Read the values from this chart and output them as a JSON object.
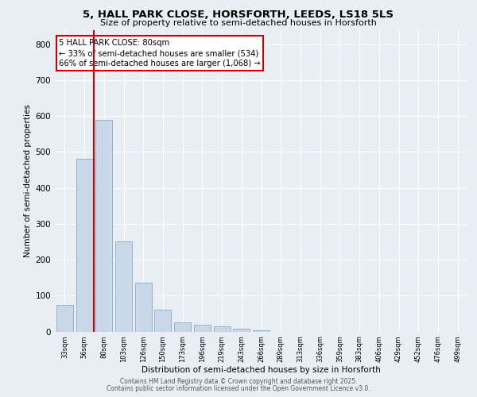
{
  "title_line1": "5, HALL PARK CLOSE, HORSFORTH, LEEDS, LS18 5LS",
  "title_line2": "Size of property relative to semi-detached houses in Horsforth",
  "xlabel": "Distribution of semi-detached houses by size in Horsforth",
  "ylabel": "Number of semi-detached properties",
  "categories": [
    "33sqm",
    "56sqm",
    "80sqm",
    "103sqm",
    "126sqm",
    "150sqm",
    "173sqm",
    "196sqm",
    "219sqm",
    "243sqm",
    "266sqm",
    "289sqm",
    "313sqm",
    "336sqm",
    "359sqm",
    "383sqm",
    "406sqm",
    "429sqm",
    "452sqm",
    "476sqm",
    "499sqm"
  ],
  "values": [
    75,
    480,
    590,
    250,
    135,
    60,
    25,
    18,
    14,
    8,
    3,
    0,
    0,
    0,
    0,
    0,
    0,
    0,
    0,
    0,
    0
  ],
  "bar_color": "#c8d8e8",
  "bar_edge_color": "#7aa0bb",
  "highlight_bar_index": 2,
  "red_line_x": 1.5,
  "annotation_title": "5 HALL PARK CLOSE: 80sqm",
  "annotation_line1": "← 33% of semi-detached houses are smaller (534)",
  "annotation_line2": "66% of semi-detached houses are larger (1,068) →",
  "annotation_box_color": "#ffffff",
  "annotation_box_edge_color": "#cc0000",
  "ylim": [
    0,
    840
  ],
  "yticks": [
    0,
    100,
    200,
    300,
    400,
    500,
    600,
    700,
    800
  ],
  "background_color": "#e8eef4",
  "plot_bg_color": "#e8eef4",
  "grid_color": "#ffffff",
  "footer_line1": "Contains HM Land Registry data © Crown copyright and database right 2025.",
  "footer_line2": "Contains public sector information licensed under the Open Government Licence v3.0."
}
